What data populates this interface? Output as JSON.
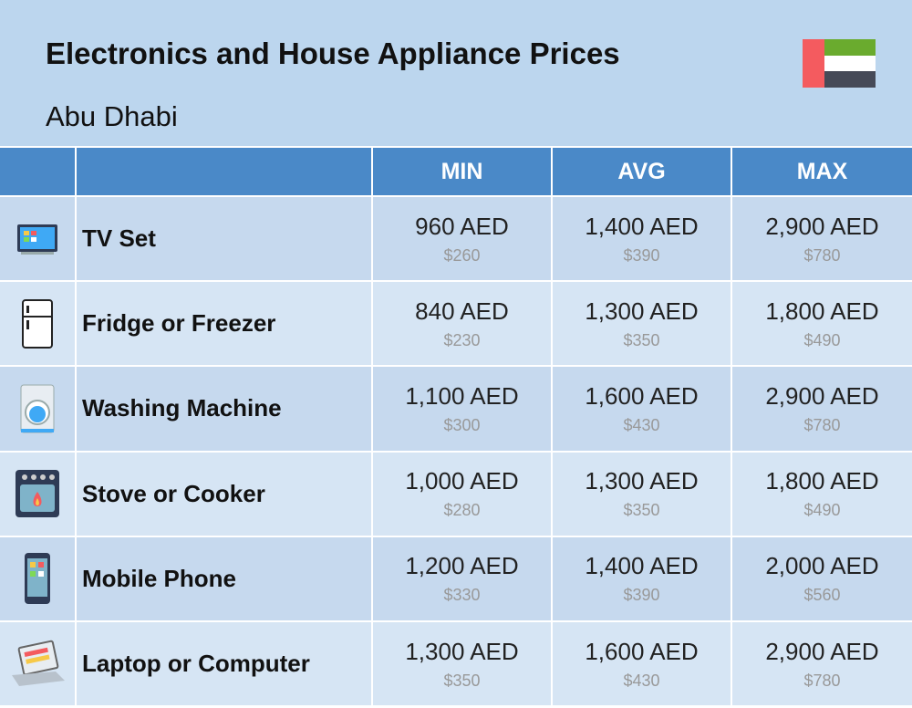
{
  "header": {
    "title": "Electronics and House Appliance Prices",
    "subtitle": "Abu Dhabi"
  },
  "table": {
    "columns": [
      "MIN",
      "AVG",
      "MAX"
    ],
    "rows": [
      {
        "name": "TV Set",
        "prices": [
          {
            "local": "960 AED",
            "usd": "$260"
          },
          {
            "local": "1,400 AED",
            "usd": "$390"
          },
          {
            "local": "2,900 AED",
            "usd": "$780"
          }
        ]
      },
      {
        "name": "Fridge or Freezer",
        "prices": [
          {
            "local": "840 AED",
            "usd": "$230"
          },
          {
            "local": "1,300 AED",
            "usd": "$350"
          },
          {
            "local": "1,800 AED",
            "usd": "$490"
          }
        ]
      },
      {
        "name": "Washing Machine",
        "prices": [
          {
            "local": "1,100 AED",
            "usd": "$300"
          },
          {
            "local": "1,600 AED",
            "usd": "$430"
          },
          {
            "local": "2,900 AED",
            "usd": "$780"
          }
        ]
      },
      {
        "name": "Stove or Cooker",
        "prices": [
          {
            "local": "1,000 AED",
            "usd": "$280"
          },
          {
            "local": "1,300 AED",
            "usd": "$350"
          },
          {
            "local": "1,800 AED",
            "usd": "$490"
          }
        ]
      },
      {
        "name": "Mobile Phone",
        "prices": [
          {
            "local": "1,200 AED",
            "usd": "$330"
          },
          {
            "local": "1,400 AED",
            "usd": "$390"
          },
          {
            "local": "2,000 AED",
            "usd": "$560"
          }
        ]
      },
      {
        "name": "Laptop or Computer",
        "prices": [
          {
            "local": "1,300 AED",
            "usd": "$350"
          },
          {
            "local": "1,600 AED",
            "usd": "$430"
          },
          {
            "local": "2,900 AED",
            "usd": "$780"
          }
        ]
      }
    ]
  }
}
